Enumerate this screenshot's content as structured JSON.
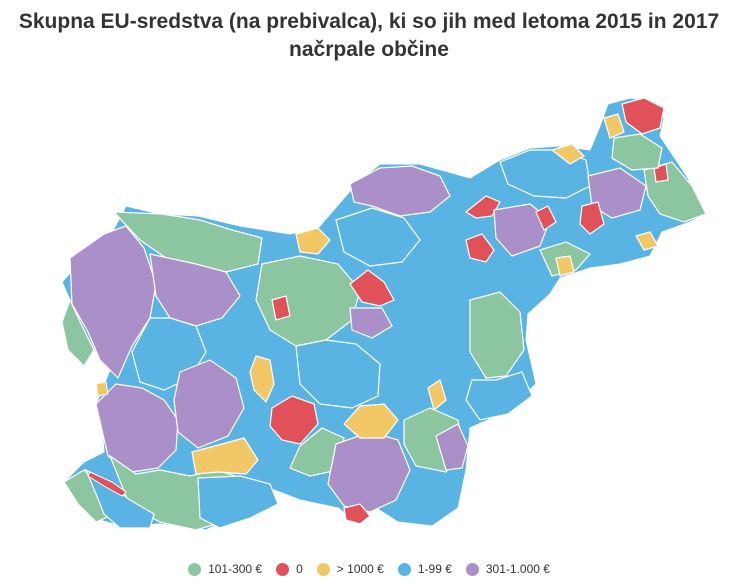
{
  "title": {
    "line1": "Skupna EU-sredstva (na prebivalca), ki so jih med letoma 2015 in 2017",
    "line2": "načrpale občine"
  },
  "legend": [
    {
      "label": "101-300 €",
      "color": "#8cc6a0",
      "icon": "circle"
    },
    {
      "label": "0",
      "color": "#e0515a",
      "icon": "circle"
    },
    {
      "label": "> 1000 €",
      "color": "#f1c865",
      "icon": "circle"
    },
    {
      "label": "1-99 €",
      "color": "#5ab4e3",
      "icon": "circle"
    },
    {
      "label": "301-1.000 €",
      "color": "#ab8fc9",
      "icon": "circle"
    }
  ],
  "colors": {
    "green": "#8cc6a0",
    "red": "#e0515a",
    "yellow": "#f1c865",
    "blue": "#5ab4e3",
    "purple": "#ab8fc9",
    "border": "#ffffff"
  }
}
